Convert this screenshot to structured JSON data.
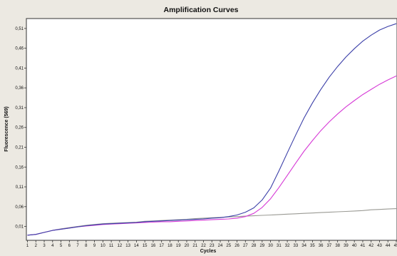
{
  "chart_data": {
    "type": "line",
    "title": "Amplification Curves",
    "xlabel": "Cycles",
    "ylabel": "Fluorescence (569)",
    "xlim": [
      1,
      45
    ],
    "ylim": [
      -0.025,
      0.535
    ],
    "x_ticks": [
      "1",
      "2",
      "3",
      "4",
      "5",
      "6",
      "7",
      "8",
      "9",
      "10",
      "11",
      "12",
      "13",
      "14",
      "15",
      "16",
      "17",
      "18",
      "19",
      "20",
      "21",
      "22",
      "23",
      "24",
      "25",
      "26",
      "27",
      "28",
      "29",
      "30",
      "31",
      "32",
      "33",
      "34",
      "35",
      "36",
      "37",
      "38",
      "39",
      "40",
      "41",
      "42",
      "43",
      "44",
      "45"
    ],
    "y_ticks": [
      {
        "value": 0.01,
        "label": "0,01"
      },
      {
        "value": 0.06,
        "label": "0,06"
      },
      {
        "value": 0.11,
        "label": "0,11"
      },
      {
        "value": 0.16,
        "label": "0,16"
      },
      {
        "value": 0.21,
        "label": "0,21"
      },
      {
        "value": 0.26,
        "label": "0,26"
      },
      {
        "value": 0.31,
        "label": "0,31"
      },
      {
        "value": 0.36,
        "label": "0,36"
      },
      {
        "value": 0.41,
        "label": "0,41"
      },
      {
        "value": 0.46,
        "label": "0,46"
      },
      {
        "value": 0.51,
        "label": "0,51"
      }
    ],
    "grid": false,
    "legend": "none",
    "series": [
      {
        "color": "#3b3fa8",
        "x": [
          1,
          2,
          3,
          4,
          5,
          6,
          7,
          8,
          9,
          10,
          11,
          12,
          13,
          14,
          15,
          16,
          17,
          18,
          19,
          20,
          21,
          22,
          23,
          24,
          25,
          26,
          27,
          28,
          29,
          30,
          31,
          32,
          33,
          34,
          35,
          36,
          37,
          38,
          39,
          40,
          41,
          42,
          43,
          44,
          45
        ],
        "y": [
          -0.012,
          -0.01,
          -0.005,
          0.0,
          0.003,
          0.006,
          0.009,
          0.012,
          0.014,
          0.016,
          0.017,
          0.018,
          0.019,
          0.02,
          0.022,
          0.023,
          0.024,
          0.025,
          0.026,
          0.027,
          0.028,
          0.029,
          0.031,
          0.032,
          0.035,
          0.039,
          0.046,
          0.057,
          0.077,
          0.107,
          0.15,
          0.196,
          0.241,
          0.284,
          0.322,
          0.356,
          0.387,
          0.414,
          0.438,
          0.459,
          0.478,
          0.493,
          0.506,
          0.515,
          0.522
        ]
      },
      {
        "color": "#d63ad6",
        "x": [
          1,
          2,
          3,
          4,
          5,
          6,
          7,
          8,
          9,
          10,
          11,
          12,
          13,
          14,
          15,
          16,
          17,
          18,
          19,
          20,
          21,
          22,
          23,
          24,
          25,
          26,
          27,
          28,
          29,
          30,
          31,
          32,
          33,
          34,
          35,
          36,
          37,
          38,
          39,
          40,
          41,
          42,
          43,
          44,
          45
        ],
        "y": [
          -0.012,
          -0.01,
          -0.005,
          0.0,
          0.003,
          0.006,
          0.009,
          0.011,
          0.013,
          0.015,
          0.016,
          0.017,
          0.018,
          0.019,
          0.02,
          0.021,
          0.022,
          0.022,
          0.023,
          0.024,
          0.025,
          0.026,
          0.027,
          0.028,
          0.029,
          0.031,
          0.035,
          0.043,
          0.058,
          0.08,
          0.108,
          0.139,
          0.17,
          0.2,
          0.227,
          0.252,
          0.274,
          0.294,
          0.312,
          0.328,
          0.343,
          0.356,
          0.369,
          0.38,
          0.39
        ]
      },
      {
        "color": "#9a9a94",
        "x": [
          1,
          2,
          3,
          4,
          5,
          6,
          7,
          8,
          9,
          10,
          11,
          12,
          13,
          14,
          15,
          16,
          17,
          18,
          19,
          20,
          21,
          22,
          23,
          24,
          25,
          26,
          27,
          28,
          29,
          30,
          31,
          32,
          33,
          34,
          35,
          36,
          37,
          38,
          39,
          40,
          41,
          42,
          43,
          44,
          45
        ],
        "y": [
          -0.012,
          -0.01,
          -0.005,
          0.0,
          0.004,
          0.007,
          0.01,
          0.013,
          0.015,
          0.017,
          0.018,
          0.019,
          0.02,
          0.021,
          0.023,
          0.024,
          0.025,
          0.026,
          0.027,
          0.028,
          0.03,
          0.031,
          0.032,
          0.033,
          0.034,
          0.035,
          0.036,
          0.037,
          0.038,
          0.039,
          0.04,
          0.041,
          0.042,
          0.043,
          0.044,
          0.045,
          0.046,
          0.047,
          0.048,
          0.049,
          0.05,
          0.052,
          0.053,
          0.054,
          0.055
        ]
      }
    ]
  }
}
